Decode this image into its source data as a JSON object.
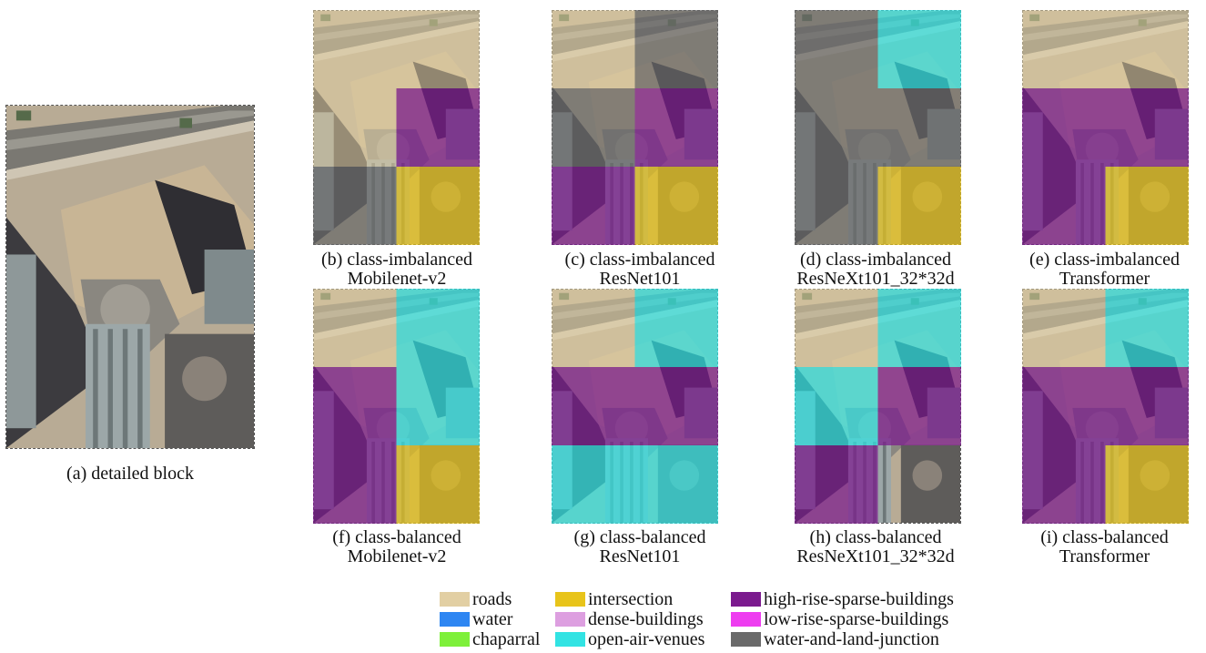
{
  "classes": {
    "roads": "#e2cfa3",
    "water": "#2e86f2",
    "chaparral": "#7ef03a",
    "intersection": "#e8c41a",
    "dense": "#dd9fe0",
    "open": "#32e3e3",
    "high": "#7b1a8e",
    "low": "#ee3df0",
    "junction": "#6a6a6a"
  },
  "panels": [
    {
      "caption_line1": "(a) detailed block",
      "caption_line2": ""
    },
    {
      "caption_line1": "(b) class-imbalanced",
      "caption_line2": "Mobilenet-v2",
      "grid": [
        [
          "roads",
          "roads"
        ],
        [
          "roads",
          "high"
        ],
        [
          "junction",
          "intersection"
        ]
      ]
    },
    {
      "caption_line1": "(c) class-imbalanced",
      "caption_line2": "ResNet101",
      "grid": [
        [
          "roads",
          "junction"
        ],
        [
          "junction",
          "high"
        ],
        [
          "high",
          "intersection"
        ]
      ]
    },
    {
      "caption_line1": "(d) class-imbalanced",
      "caption_line2": "ResNeXt101_32*32d",
      "grid": [
        [
          "junction",
          "open"
        ],
        [
          "junction",
          "junction"
        ],
        [
          "junction",
          "intersection"
        ]
      ]
    },
    {
      "caption_line1": "(e) class-imbalanced",
      "caption_line2": "Transformer",
      "grid": [
        [
          "roads",
          "roads"
        ],
        [
          "high",
          "high"
        ],
        [
          "high",
          "intersection"
        ]
      ]
    },
    {
      "caption_line1": "(f) class-balanced",
      "caption_line2": "Mobilenet-v2",
      "grid": [
        [
          "roads",
          "open"
        ],
        [
          "high",
          "open"
        ],
        [
          "high",
          "intersection"
        ]
      ]
    },
    {
      "caption_line1": "(g) class-balanced",
      "caption_line2": "ResNet101",
      "grid": [
        [
          "roads",
          "open"
        ],
        [
          "high",
          "high"
        ],
        [
          "open",
          "open"
        ]
      ]
    },
    {
      "caption_line1": "(h) class-balanced",
      "caption_line2": "ResNeXt101_32*32d",
      "grid": [
        [
          "roads",
          "open"
        ],
        [
          "open",
          "high"
        ],
        [
          "high",
          "none"
        ]
      ]
    },
    {
      "caption_line1": "(i) class-balanced",
      "caption_line2": "Transformer",
      "grid": [
        [
          "roads",
          "open"
        ],
        [
          "high",
          "high"
        ],
        [
          "high",
          "intersection"
        ]
      ]
    }
  ],
  "legend": [
    {
      "key": "roads",
      "label": "roads"
    },
    {
      "key": "water",
      "label": "water"
    },
    {
      "key": "chaparral",
      "label": "chaparral"
    },
    {
      "key": "intersection",
      "label": "intersection"
    },
    {
      "key": "dense",
      "label": "dense-buildings"
    },
    {
      "key": "open",
      "label": "open-air-venues"
    },
    {
      "key": "high",
      "label": "high-rise-sparse-buildings"
    },
    {
      "key": "low",
      "label": "low-rise-sparse-buildings"
    },
    {
      "key": "junction",
      "label": "water-and-land-junction"
    }
  ]
}
